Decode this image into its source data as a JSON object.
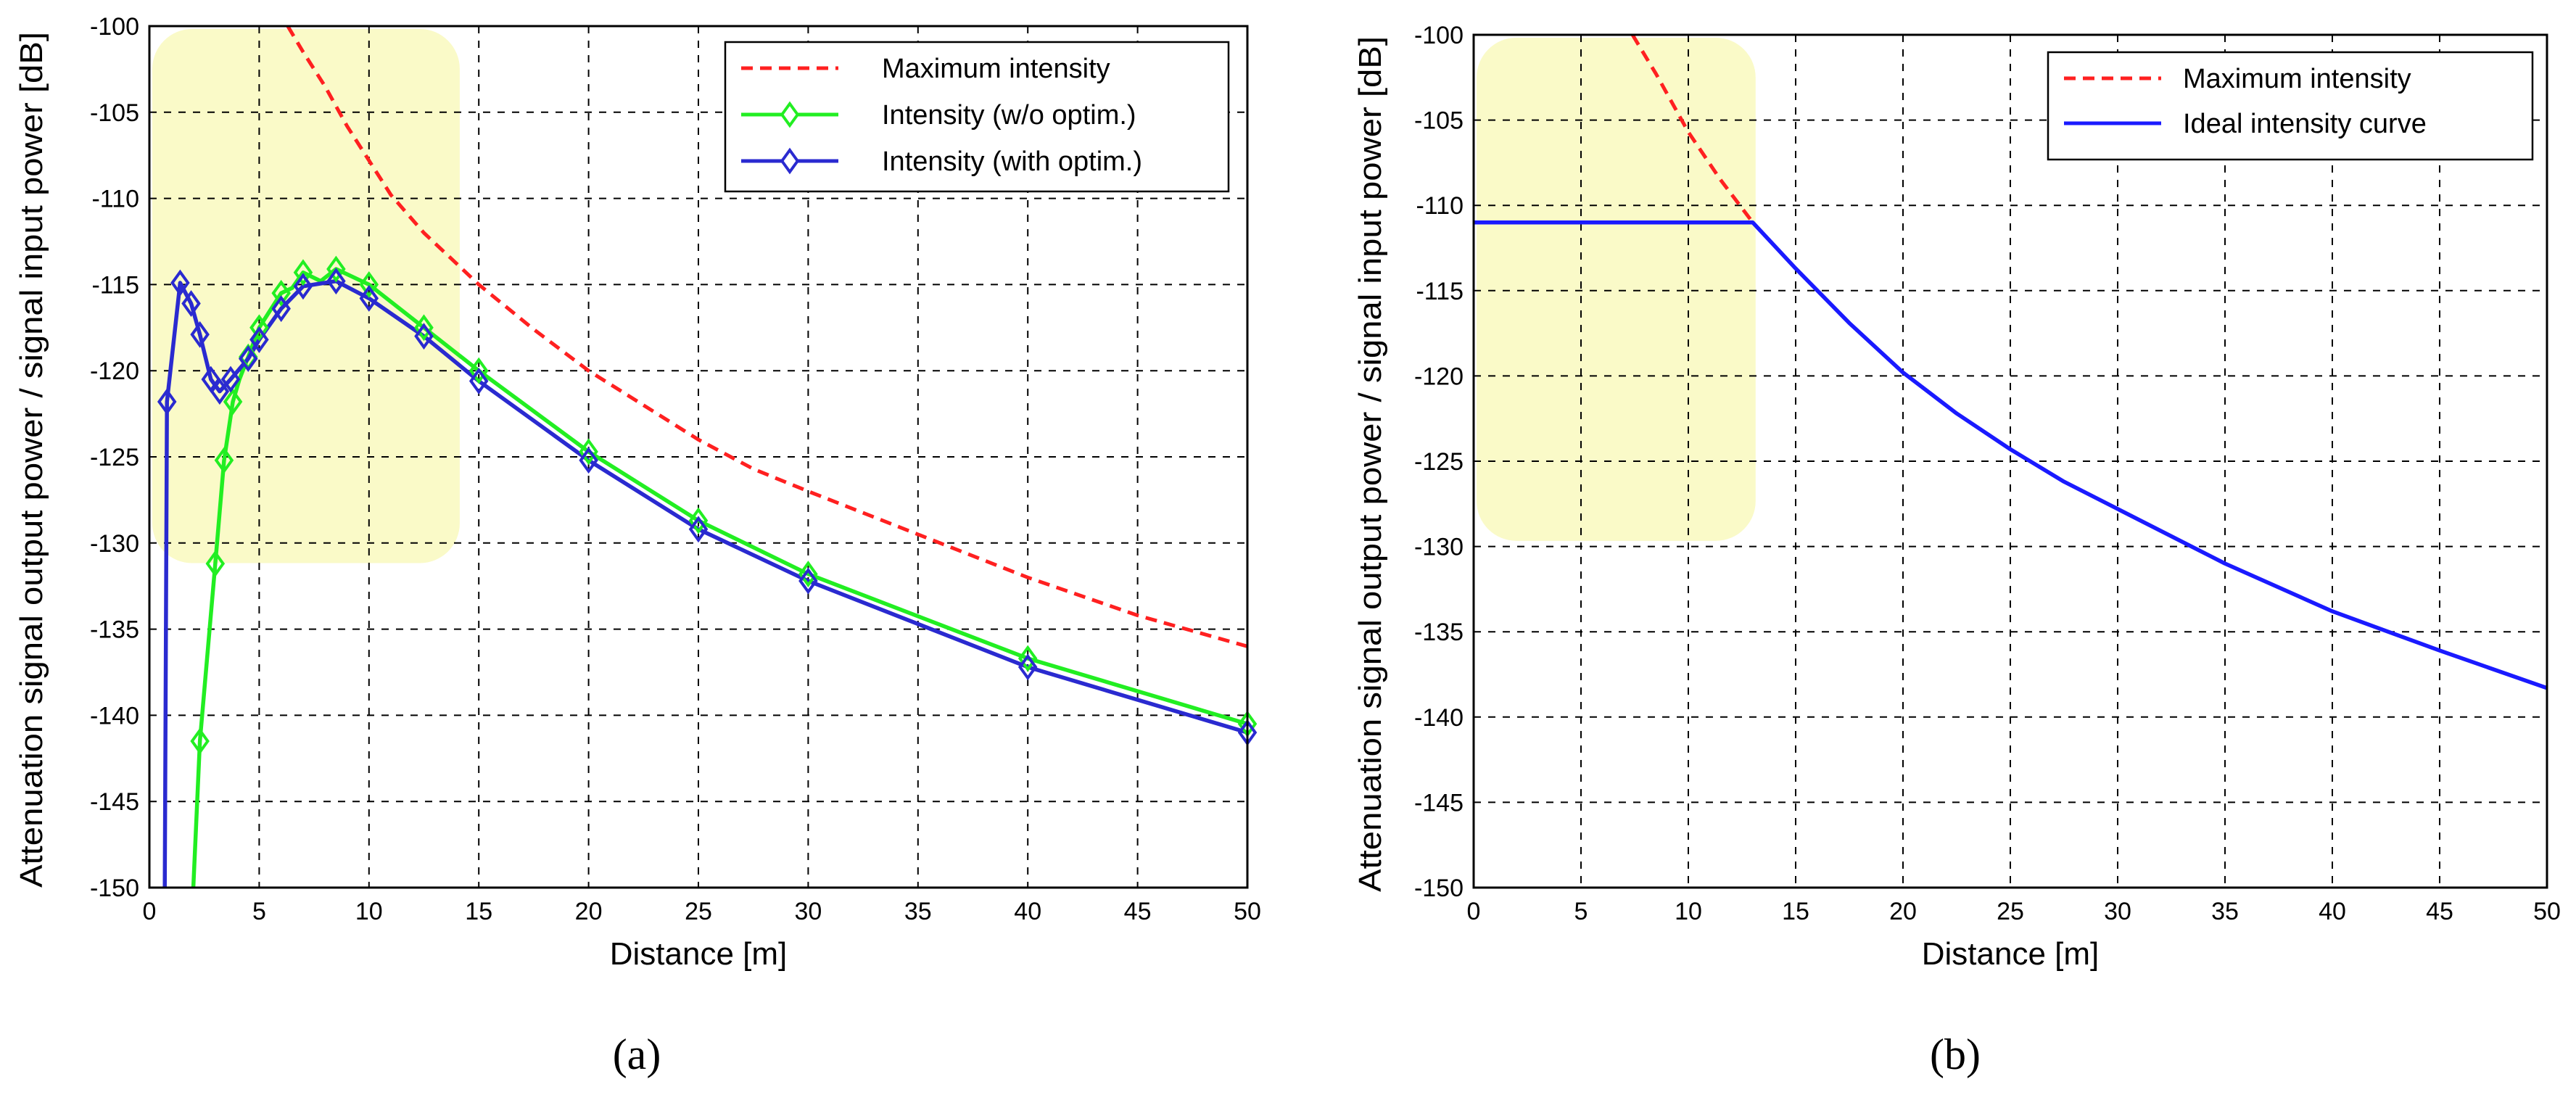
{
  "chart_data": [
    {
      "type": "line",
      "caption": "(a)",
      "xlabel": "Distance [m]",
      "ylabel": "Attenuation signal output power / signal input power [dB]",
      "xlim": [
        0,
        50
      ],
      "ylim": [
        -150,
        -100
      ],
      "xticks": [
        "0",
        "5",
        "10",
        "15",
        "20",
        "25",
        "30",
        "35",
        "40",
        "45",
        "50"
      ],
      "yticks": [
        "-100",
        "-105",
        "-110",
        "-115",
        "-120",
        "-125",
        "-130",
        "-135",
        "-140",
        "-145",
        "-150"
      ],
      "grid": true,
      "legend_position": "top-right",
      "highlight": {
        "x": [
          0,
          14
        ],
        "y": [
          -131,
          -100
        ],
        "color": "#fafac8"
      },
      "series": [
        {
          "name": "Maximum intensity",
          "color": "#ff2020",
          "style": "dashed",
          "marker": "none",
          "x": [
            6.3,
            7,
            8,
            9,
            10,
            11,
            12.5,
            15,
            17.5,
            20,
            22.5,
            25,
            27.5,
            30,
            35,
            40,
            45,
            50
          ],
          "y": [
            -100,
            -101.5,
            -103.5,
            -105.8,
            -107.8,
            -109.8,
            -112,
            -115,
            -117.6,
            -120,
            -122,
            -124,
            -125.7,
            -127,
            -129.5,
            -132,
            -134.2,
            -136
          ]
        },
        {
          "name": "Intensity (w/o optim.)",
          "color": "#22ee22",
          "style": "solid",
          "marker": "diamond",
          "x": [
            2.0,
            2.3,
            3.0,
            3.4,
            3.8,
            4.1,
            4.5,
            5.0,
            5.5,
            6.0,
            6.5,
            7.0,
            7.8,
            8.5,
            10,
            12.5,
            15,
            20,
            25,
            30,
            40,
            50
          ],
          "y": [
            -150,
            -141.5,
            -131.2,
            -125.2,
            -121.8,
            -120.5,
            -119.2,
            -117.5,
            -116.5,
            -115.5,
            -115.2,
            -114.3,
            -114.8,
            -114.1,
            -115,
            -117.5,
            -120,
            -124.7,
            -128.7,
            -131.8,
            -136.7,
            -140.5
          ],
          "marked": [
            false,
            true,
            true,
            true,
            true,
            false,
            true,
            true,
            false,
            true,
            false,
            true,
            false,
            true,
            true,
            true,
            true,
            true,
            true,
            true,
            true,
            true
          ]
        },
        {
          "name": "Intensity (with optim.)",
          "color": "#2a2ad0",
          "style": "solid",
          "marker": "diamond",
          "x": [
            0.7,
            0.8,
            1.4,
            1.9,
            2.3,
            2.8,
            3.2,
            3.7,
            4.1,
            4.5,
            5.0,
            6.0,
            7.0,
            8.5,
            10,
            12.5,
            15,
            20,
            25,
            30,
            40,
            50
          ],
          "y": [
            -150,
            -121.8,
            -114.9,
            -116.1,
            -117.9,
            -120.5,
            -121.2,
            -120.5,
            -119.9,
            -119.3,
            -118.2,
            -116.4,
            -115.1,
            -114.8,
            -115.8,
            -118,
            -120.6,
            -125.2,
            -129.2,
            -132.2,
            -137.2,
            -141
          ],
          "marked": [
            false,
            true,
            true,
            true,
            true,
            true,
            true,
            true,
            false,
            true,
            true,
            true,
            true,
            true,
            true,
            true,
            true,
            true,
            true,
            true,
            true,
            true
          ]
        }
      ]
    },
    {
      "type": "line",
      "caption": "(b)",
      "xlabel": "Distance [m]",
      "ylabel": "Attenuation signal output power / signal input power [dB]",
      "xlim": [
        0,
        50
      ],
      "ylim": [
        -150,
        -100
      ],
      "xticks": [
        "0",
        "5",
        "10",
        "15",
        "20",
        "25",
        "30",
        "35",
        "40",
        "45",
        "50"
      ],
      "yticks": [
        "-100",
        "-105",
        "-110",
        "-115",
        "-120",
        "-125",
        "-130",
        "-135",
        "-140",
        "-145",
        "-150"
      ],
      "grid": true,
      "legend_position": "top-right",
      "highlight": {
        "x": [
          0,
          13
        ],
        "y": [
          -129.5,
          -100
        ],
        "color": "#fafac8"
      },
      "series": [
        {
          "name": "Maximum intensity",
          "color": "#ff2020",
          "style": "dashed",
          "marker": "none",
          "x": [
            7.4,
            8.5,
            10,
            11.5,
            13
          ],
          "y": [
            -100,
            -102.3,
            -105.7,
            -108.5,
            -111
          ]
        },
        {
          "name": "Ideal intensity curve",
          "color": "#1a1aff",
          "style": "solid",
          "marker": "none",
          "x": [
            0,
            13,
            15,
            17.5,
            20,
            22.5,
            25,
            27.5,
            30,
            35,
            40,
            45,
            50
          ],
          "y": [
            -111,
            -111,
            -113.7,
            -116.9,
            -119.8,
            -122.2,
            -124.3,
            -126.2,
            -127.8,
            -131,
            -133.8,
            -136.1,
            -138.3
          ]
        }
      ]
    }
  ]
}
